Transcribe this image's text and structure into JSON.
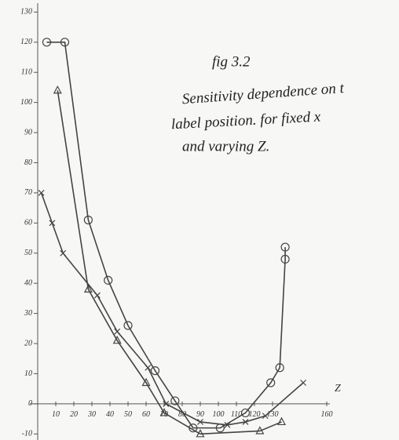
{
  "chart_data": {
    "type": "scatter",
    "annotations": [
      "fig 3.2",
      "Sensitivity dependence on t",
      "label position. for fixed x",
      "and varying Z."
    ],
    "x_label": "Z",
    "xlim": [
      0,
      200
    ],
    "ylim": [
      -12,
      134
    ],
    "xticks": [
      10,
      20,
      30,
      40,
      50,
      60,
      70,
      80,
      90,
      100,
      110,
      120,
      130,
      160
    ],
    "yticks": [
      -10,
      0,
      10,
      20,
      30,
      40,
      50,
      60,
      70,
      80,
      90,
      100,
      110,
      120,
      130
    ],
    "series": [
      {
        "marker": "circle",
        "color": "#444444",
        "x": [
          5,
          15,
          28,
          39,
          50,
          65,
          76,
          86,
          101,
          115,
          129,
          134,
          137,
          137
        ],
        "values": [
          120,
          120,
          61,
          41,
          26,
          11,
          1,
          -8,
          -8,
          -3,
          7,
          12,
          48,
          52
        ]
      },
      {
        "marker": "triangle",
        "color": "#444444",
        "x": [
          11,
          28,
          44,
          60,
          70,
          90,
          123,
          135
        ],
        "values": [
          104,
          38,
          21,
          7,
          -3,
          -10,
          -9,
          -6
        ]
      },
      {
        "marker": "cross",
        "color": "#444444",
        "x": [
          2,
          8,
          14,
          33,
          44,
          61,
          71,
          90,
          105,
          115,
          126,
          147
        ],
        "values": [
          70,
          60,
          50,
          36,
          24,
          12,
          0,
          -6,
          -7,
          -6,
          -4,
          7
        ]
      }
    ]
  }
}
